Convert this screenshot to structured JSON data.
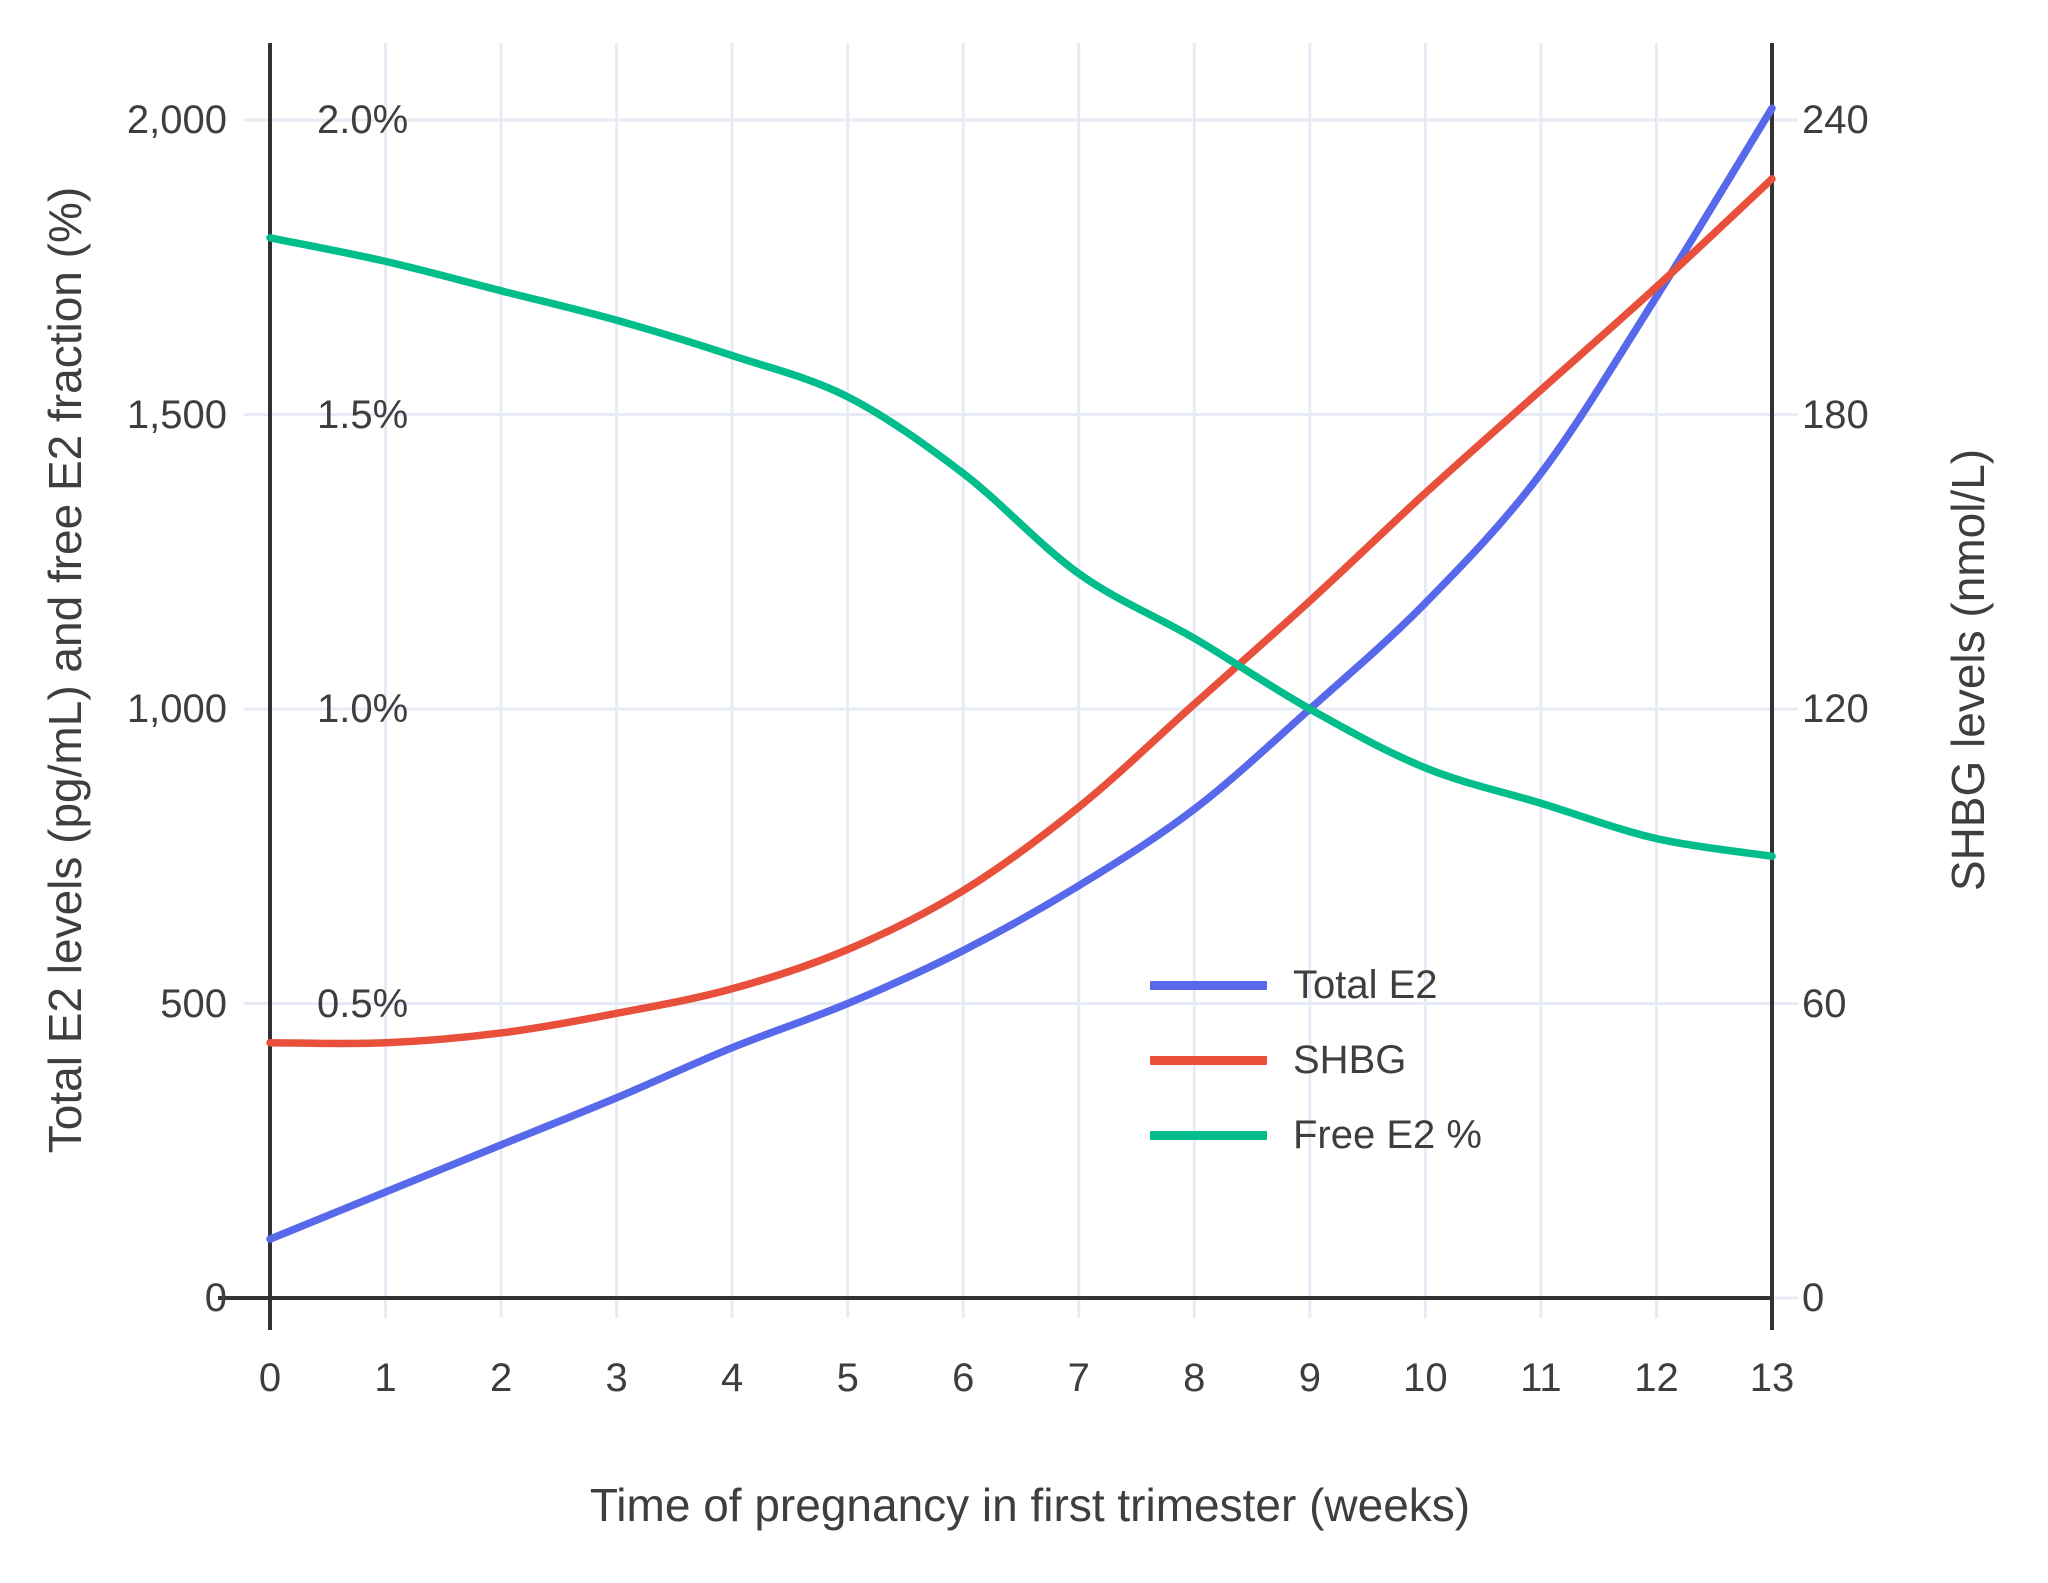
{
  "chart_data": {
    "type": "line",
    "x": [
      0,
      1,
      2,
      3,
      4,
      5,
      6,
      7,
      8,
      9,
      10,
      11,
      12,
      13
    ],
    "x_tick_labels": [
      "0",
      "1",
      "2",
      "3",
      "4",
      "5",
      "6",
      "7",
      "8",
      "9",
      "10",
      "11",
      "12",
      "13"
    ],
    "xlabel": "Time of pregnancy in first trimester (weeks)",
    "ylabel_left": "Total E2 levels (pg/mL) and free E2 fraction (%)",
    "ylabel_right": "SHBG levels (nmol/L)",
    "left_tick_labels": [
      "0",
      "500",
      "1,000",
      "1,500",
      "2,000"
    ],
    "left_tick_values": [
      0,
      500,
      1000,
      1500,
      2000
    ],
    "percent_tick_labels": [
      "0.5%",
      "1.0%",
      "1.5%",
      "2.0%"
    ],
    "percent_tick_values": [
      0.5,
      1.0,
      1.5,
      2.0
    ],
    "right_tick_labels": [
      "0",
      "60",
      "120",
      "180",
      "240"
    ],
    "right_tick_values": [
      0,
      60,
      120,
      180,
      240
    ],
    "ylim_left": [
      0,
      2130
    ],
    "ylim_right": [
      0,
      255.6
    ],
    "grid": true,
    "legend_position": "inside-center-right",
    "series": [
      {
        "name": "Total E2",
        "axis": "left",
        "unit": "pg/mL",
        "color": "#5868eb",
        "values": [
          100,
          180,
          260,
          340,
          425,
          500,
          590,
          700,
          830,
          1000,
          1180,
          1400,
          1700,
          2020
        ]
      },
      {
        "name": "SHBG",
        "axis": "right",
        "unit": "nmol/L",
        "color": "#e8503b",
        "values": [
          52,
          52,
          54,
          58,
          63,
          71,
          83,
          100,
          121,
          142,
          164,
          185,
          206,
          228
        ]
      },
      {
        "name": "Free E2 %",
        "axis": "left-percent",
        "unit": "%",
        "color": "#00bd8b",
        "values": [
          1.8,
          1.76,
          1.71,
          1.66,
          1.6,
          1.53,
          1.4,
          1.23,
          1.12,
          1.0,
          0.9,
          0.84,
          0.78,
          0.75
        ]
      }
    ],
    "colors": {
      "grid": "#e6ebf5",
      "spine": "#323232",
      "text": "#3e3e3e",
      "background": "#ffffff"
    }
  }
}
